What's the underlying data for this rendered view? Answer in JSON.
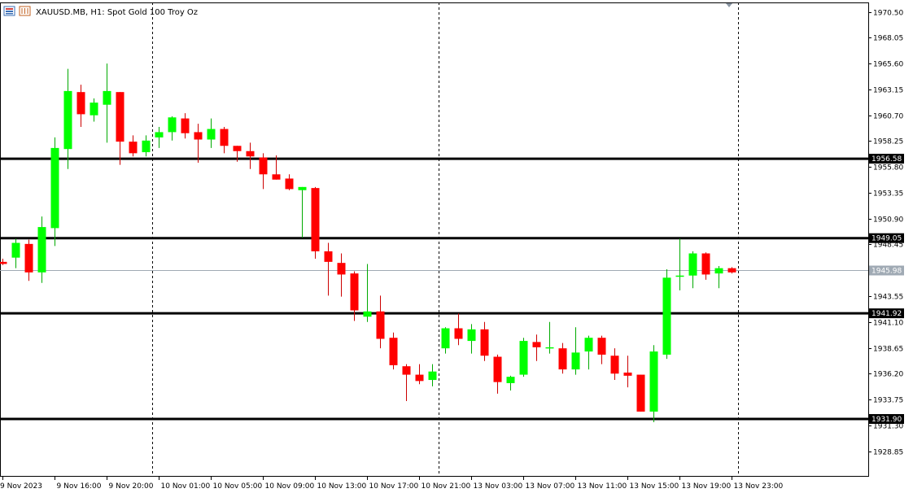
{
  "header": {
    "symbol_line": "XAUUSD.MB, H1:  Spot Gold 100 Troy Oz"
  },
  "colors": {
    "bull": "#00ff00",
    "bear": "#ff0000",
    "wick_bull": "#00aa00",
    "wick_bear": "#cc0000",
    "level_line": "#000000",
    "current_price_line": "#a0aab4",
    "current_price_label_bg": "#a0aab4",
    "level_label_bg": "#000000",
    "level_label_text": "#ffffff"
  },
  "chart_data": {
    "type": "candlestick",
    "ylim": [
      1926.5,
      1971.4
    ],
    "y_ticks": [
      {
        "value": 1970.5,
        "label": "1970.50"
      },
      {
        "value": 1968.05,
        "label": "1968.05"
      },
      {
        "value": 1965.6,
        "label": "1965.60"
      },
      {
        "value": 1963.15,
        "label": "1963.15"
      },
      {
        "value": 1960.7,
        "label": "1960.70"
      },
      {
        "value": 1958.25,
        "label": "1958.25"
      },
      {
        "value": 1955.8,
        "label": "1955.80"
      },
      {
        "value": 1953.35,
        "label": "1953.35"
      },
      {
        "value": 1950.9,
        "label": "1950.90"
      },
      {
        "value": 1948.45,
        "label": "1948.45"
      },
      {
        "value": 1943.55,
        "label": "1943.55"
      },
      {
        "value": 1941.1,
        "label": "1941.10"
      },
      {
        "value": 1938.65,
        "label": "1938.65"
      },
      {
        "value": 1936.2,
        "label": "1936.20"
      },
      {
        "value": 1933.75,
        "label": "1933.75"
      },
      {
        "value": 1931.3,
        "label": "1931.30"
      },
      {
        "value": 1928.85,
        "label": "1928.85"
      }
    ],
    "x_labels": [
      {
        "index": 0,
        "label": "9 Nov 2023"
      },
      {
        "index": 4,
        "label": "9 Nov 16:00"
      },
      {
        "index": 8,
        "label": "9 Nov 20:00"
      },
      {
        "index": 12,
        "label": "10 Nov 01:00"
      },
      {
        "index": 16,
        "label": "10 Nov 05:00"
      },
      {
        "index": 20,
        "label": "10 Nov 09:00"
      },
      {
        "index": 24,
        "label": "10 Nov 13:00"
      },
      {
        "index": 28,
        "label": "10 Nov 17:00"
      },
      {
        "index": 32,
        "label": "10 Nov 21:00"
      },
      {
        "index": 36,
        "label": "13 Nov 03:00"
      },
      {
        "index": 40,
        "label": "13 Nov 07:00"
      },
      {
        "index": 44,
        "label": "13 Nov 11:00"
      },
      {
        "index": 48,
        "label": "13 Nov 15:00"
      },
      {
        "index": 52,
        "label": "13 Nov 19:00"
      },
      {
        "index": 56,
        "label": "13 Nov 23:00"
      }
    ],
    "separators": [
      11.5,
      33.5,
      56.5
    ],
    "horizontal_levels": [
      {
        "value": 1956.58,
        "label": "1956.58"
      },
      {
        "value": 1949.05,
        "label": "1949.05"
      },
      {
        "value": 1941.92,
        "label": "1941.92"
      },
      {
        "value": 1931.9,
        "label": "1931.90"
      }
    ],
    "current_price": {
      "value": 1945.98,
      "label": "1945.98"
    },
    "candles": [
      {
        "o": 1946.8,
        "h": 1947.1,
        "l": 1946.5,
        "c": 1946.6
      },
      {
        "o": 1947.2,
        "h": 1949.0,
        "l": 1946.2,
        "c": 1948.6
      },
      {
        "o": 1948.5,
        "h": 1948.9,
        "l": 1945.0,
        "c": 1945.8
      },
      {
        "o": 1945.8,
        "h": 1951.1,
        "l": 1944.8,
        "c": 1950.1
      },
      {
        "o": 1950.0,
        "h": 1958.6,
        "l": 1948.3,
        "c": 1957.6
      },
      {
        "o": 1957.5,
        "h": 1965.1,
        "l": 1955.6,
        "c": 1963.0
      },
      {
        "o": 1962.9,
        "h": 1963.6,
        "l": 1959.6,
        "c": 1960.8
      },
      {
        "o": 1960.7,
        "h": 1962.3,
        "l": 1960.1,
        "c": 1961.9
      },
      {
        "o": 1961.7,
        "h": 1965.6,
        "l": 1958.1,
        "c": 1963.0
      },
      {
        "o": 1962.9,
        "h": 1962.9,
        "l": 1956.0,
        "c": 1958.2
      },
      {
        "o": 1958.2,
        "h": 1958.8,
        "l": 1956.8,
        "c": 1957.1
      },
      {
        "o": 1957.2,
        "h": 1958.8,
        "l": 1956.8,
        "c": 1958.3
      },
      {
        "o": 1958.6,
        "h": 1959.6,
        "l": 1957.6,
        "c": 1959.1
      },
      {
        "o": 1959.1,
        "h": 1960.6,
        "l": 1958.3,
        "c": 1960.5
      },
      {
        "o": 1960.4,
        "h": 1960.9,
        "l": 1958.5,
        "c": 1959.0
      },
      {
        "o": 1959.1,
        "h": 1959.9,
        "l": 1956.2,
        "c": 1958.4
      },
      {
        "o": 1958.4,
        "h": 1960.4,
        "l": 1957.6,
        "c": 1959.4
      },
      {
        "o": 1959.4,
        "h": 1959.6,
        "l": 1957.1,
        "c": 1957.8
      },
      {
        "o": 1957.8,
        "h": 1957.8,
        "l": 1956.3,
        "c": 1957.3
      },
      {
        "o": 1957.3,
        "h": 1958.1,
        "l": 1955.6,
        "c": 1956.8
      },
      {
        "o": 1956.7,
        "h": 1957.1,
        "l": 1953.7,
        "c": 1955.1
      },
      {
        "o": 1955.1,
        "h": 1956.9,
        "l": 1954.6,
        "c": 1954.6
      },
      {
        "o": 1954.7,
        "h": 1955.1,
        "l": 1953.6,
        "c": 1953.7
      },
      {
        "o": 1953.6,
        "h": 1953.9,
        "l": 1949.1,
        "c": 1953.9
      },
      {
        "o": 1953.8,
        "h": 1953.9,
        "l": 1947.1,
        "c": 1947.8
      },
      {
        "o": 1947.8,
        "h": 1948.6,
        "l": 1943.6,
        "c": 1946.8
      },
      {
        "o": 1946.7,
        "h": 1947.6,
        "l": 1943.5,
        "c": 1945.6
      },
      {
        "o": 1945.7,
        "h": 1945.9,
        "l": 1941.2,
        "c": 1942.2
      },
      {
        "o": 1941.6,
        "h": 1946.6,
        "l": 1941.1,
        "c": 1942.1
      },
      {
        "o": 1942.1,
        "h": 1943.6,
        "l": 1938.6,
        "c": 1939.5
      },
      {
        "o": 1939.6,
        "h": 1940.1,
        "l": 1936.6,
        "c": 1937.0
      },
      {
        "o": 1936.9,
        "h": 1937.1,
        "l": 1933.6,
        "c": 1936.1
      },
      {
        "o": 1936.1,
        "h": 1937.1,
        "l": 1935.2,
        "c": 1935.5
      },
      {
        "o": 1935.6,
        "h": 1937.1,
        "l": 1935.0,
        "c": 1936.4
      },
      {
        "o": 1938.6,
        "h": 1940.6,
        "l": 1938.1,
        "c": 1940.5
      },
      {
        "o": 1940.5,
        "h": 1941.9,
        "l": 1938.9,
        "c": 1939.5
      },
      {
        "o": 1939.3,
        "h": 1940.9,
        "l": 1938.1,
        "c": 1940.4
      },
      {
        "o": 1940.4,
        "h": 1941.1,
        "l": 1937.4,
        "c": 1937.9
      },
      {
        "o": 1937.8,
        "h": 1938.0,
        "l": 1934.3,
        "c": 1935.4
      },
      {
        "o": 1935.3,
        "h": 1936.0,
        "l": 1934.6,
        "c": 1935.9
      },
      {
        "o": 1936.1,
        "h": 1939.6,
        "l": 1935.9,
        "c": 1939.3
      },
      {
        "o": 1939.2,
        "h": 1939.9,
        "l": 1937.4,
        "c": 1938.7
      },
      {
        "o": 1938.6,
        "h": 1941.1,
        "l": 1938.1,
        "c": 1938.7
      },
      {
        "o": 1938.6,
        "h": 1939.1,
        "l": 1936.2,
        "c": 1936.6
      },
      {
        "o": 1936.6,
        "h": 1940.6,
        "l": 1936.1,
        "c": 1938.2
      },
      {
        "o": 1938.3,
        "h": 1939.8,
        "l": 1936.6,
        "c": 1939.6
      },
      {
        "o": 1939.6,
        "h": 1939.8,
        "l": 1937.1,
        "c": 1938.0
      },
      {
        "o": 1937.9,
        "h": 1938.6,
        "l": 1935.6,
        "c": 1936.2
      },
      {
        "o": 1936.3,
        "h": 1937.9,
        "l": 1934.9,
        "c": 1936.0
      },
      {
        "o": 1936.1,
        "h": 1936.1,
        "l": 1932.6,
        "c": 1932.6
      },
      {
        "o": 1932.6,
        "h": 1938.9,
        "l": 1931.6,
        "c": 1938.3
      },
      {
        "o": 1938.0,
        "h": 1946.1,
        "l": 1937.6,
        "c": 1945.3
      },
      {
        "o": 1945.4,
        "h": 1949.0,
        "l": 1944.1,
        "c": 1945.5
      },
      {
        "o": 1945.5,
        "h": 1947.8,
        "l": 1944.3,
        "c": 1947.6
      },
      {
        "o": 1947.6,
        "h": 1947.7,
        "l": 1945.1,
        "c": 1945.6
      },
      {
        "o": 1945.7,
        "h": 1946.4,
        "l": 1944.3,
        "c": 1946.2
      },
      {
        "o": 1946.2,
        "h": 1946.3,
        "l": 1945.7,
        "c": 1945.8
      }
    ]
  }
}
